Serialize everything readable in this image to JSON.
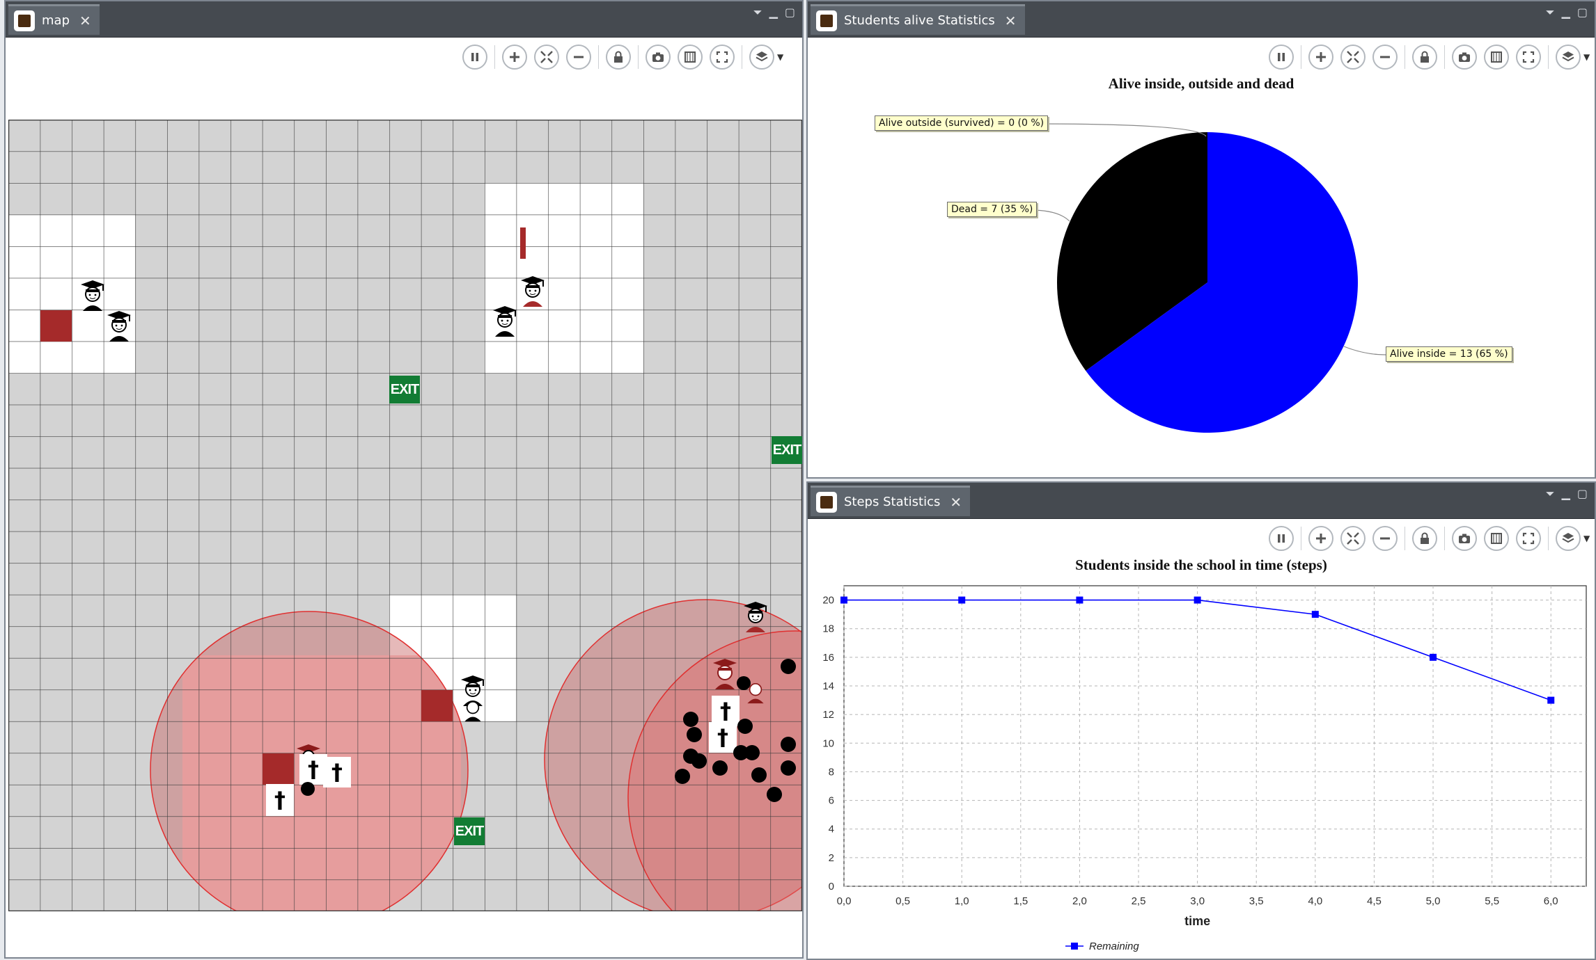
{
  "map_pane": {
    "tab_label": "map",
    "exits": [
      "EXIT",
      "EXIT",
      "EXIT"
    ],
    "grid": {
      "cols": 25,
      "rows": 25
    }
  },
  "students_pane": {
    "tab_label": "Students alive Statistics",
    "chart_data": {
      "type": "pie",
      "title": "Alive inside, outside and dead",
      "slices": [
        {
          "name": "Alive inside",
          "value": 13,
          "color": "#0000ff",
          "label": "Alive inside = 13 (65 %)"
        },
        {
          "name": "Dead",
          "value": 7,
          "color": "#000000",
          "label": "Dead = 7 (35 %)"
        },
        {
          "name": "Alive outside (survived)",
          "value": 0,
          "color": "#888888",
          "label": "Alive outside (survived) = 0 (0 %)"
        }
      ]
    }
  },
  "steps_pane": {
    "tab_label": "Steps Statistics",
    "chart_data": {
      "type": "line",
      "title": "Students inside the school in time (steps)",
      "xlabel": "time",
      "ylabel": "",
      "xlim": [
        0,
        6.3
      ],
      "ylim": [
        0,
        21
      ],
      "x_ticks": [
        "0,0",
        "0,5",
        "1,0",
        "1,5",
        "2,0",
        "2,5",
        "3,0",
        "3,5",
        "4,0",
        "4,5",
        "5,0",
        "5,5",
        "6,0"
      ],
      "y_ticks": [
        "0",
        "2",
        "4",
        "6",
        "8",
        "10",
        "12",
        "14",
        "16",
        "18",
        "20"
      ],
      "grid": true,
      "legend_position": "bottom",
      "series": [
        {
          "name": "Remaining",
          "color": "#0000ff",
          "x": [
            0,
            1,
            2,
            3,
            4,
            5,
            6
          ],
          "y": [
            20,
            20,
            20,
            20,
            19,
            16,
            13
          ]
        }
      ]
    }
  }
}
